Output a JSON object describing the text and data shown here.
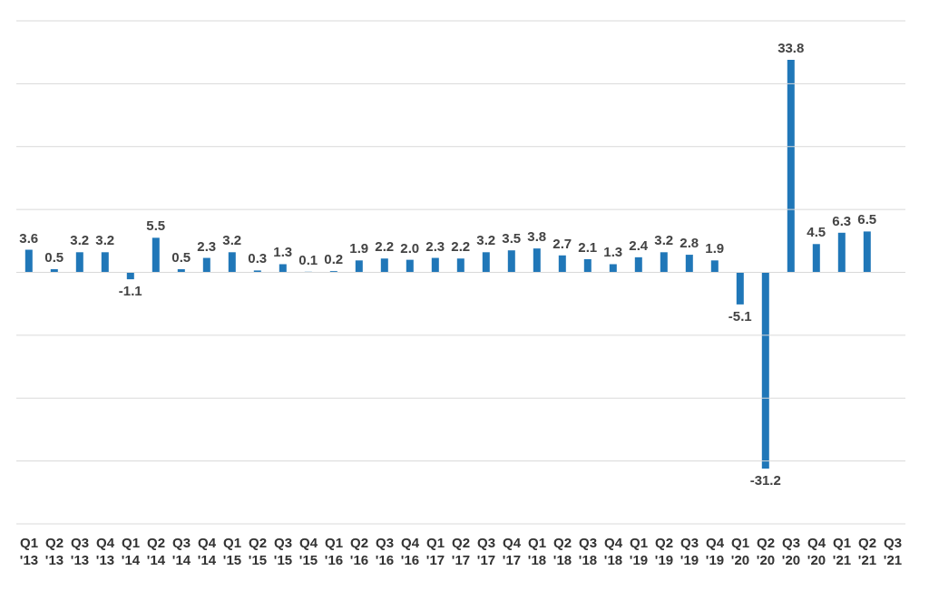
{
  "chart_data": {
    "type": "bar",
    "categories": [
      "Q1 '13",
      "Q2 '13",
      "Q3 '13",
      "Q4 '13",
      "Q1 '14",
      "Q2 '14",
      "Q3 '14",
      "Q4 '14",
      "Q1 '15",
      "Q2 '15",
      "Q3 '15",
      "Q4 '15",
      "Q1 '16",
      "Q2 '16",
      "Q3 '16",
      "Q4 '16",
      "Q1 '17",
      "Q2 '17",
      "Q3 '17",
      "Q4 '17",
      "Q1 '18",
      "Q2 '18",
      "Q3 '18",
      "Q4 '18",
      "Q1 '19",
      "Q2 '19",
      "Q3 '19",
      "Q4 '19",
      "Q1 '20",
      "Q2 '20",
      "Q3 '20",
      "Q4 '20",
      "Q1 '21",
      "Q2 '21",
      "Q3 '21"
    ],
    "values": [
      3.6,
      0.5,
      3.2,
      3.2,
      -1.1,
      5.5,
      0.5,
      2.3,
      3.2,
      0.3,
      1.3,
      0.1,
      0.2,
      1.9,
      2.2,
      2.0,
      2.3,
      2.2,
      3.2,
      3.5,
      3.8,
      2.7,
      2.1,
      1.3,
      2.4,
      3.2,
      2.8,
      1.9,
      -5.1,
      -31.2,
      33.8,
      4.5,
      6.3,
      6.5,
      null
    ],
    "color": "#2077b8",
    "ylim": [
      -40,
      40
    ],
    "yticks": [
      {
        "value": -40,
        "label": null
      },
      {
        "value": -30,
        "label": null
      },
      {
        "value": -20,
        "label": null
      },
      {
        "value": -10,
        "label": null
      },
      {
        "value": 0,
        "label": null
      },
      {
        "value": 10,
        "label": null
      },
      {
        "value": 20,
        "label": null
      },
      {
        "value": 30,
        "label": null
      },
      {
        "value": 40,
        "label": null
      }
    ],
    "tick_labels": "x",
    "grid": "y",
    "value_labels": [
      "3.6",
      "0.5",
      "3.2",
      "3.2",
      "-1.1",
      "5.5",
      "0.5",
      "2.3",
      "3.2",
      "0.3",
      "1.3",
      "0.1",
      "0.2",
      "1.9",
      "2.2",
      "2.0",
      "2.3",
      "2.2",
      "3.2",
      "3.5",
      "3.8",
      "2.7",
      "2.1",
      "1.3",
      "2.4",
      "3.2",
      "2.8",
      "1.9",
      "-5.1",
      "-31.2",
      "33.8",
      "4.5",
      "6.3",
      "6.5",
      null
    ]
  }
}
